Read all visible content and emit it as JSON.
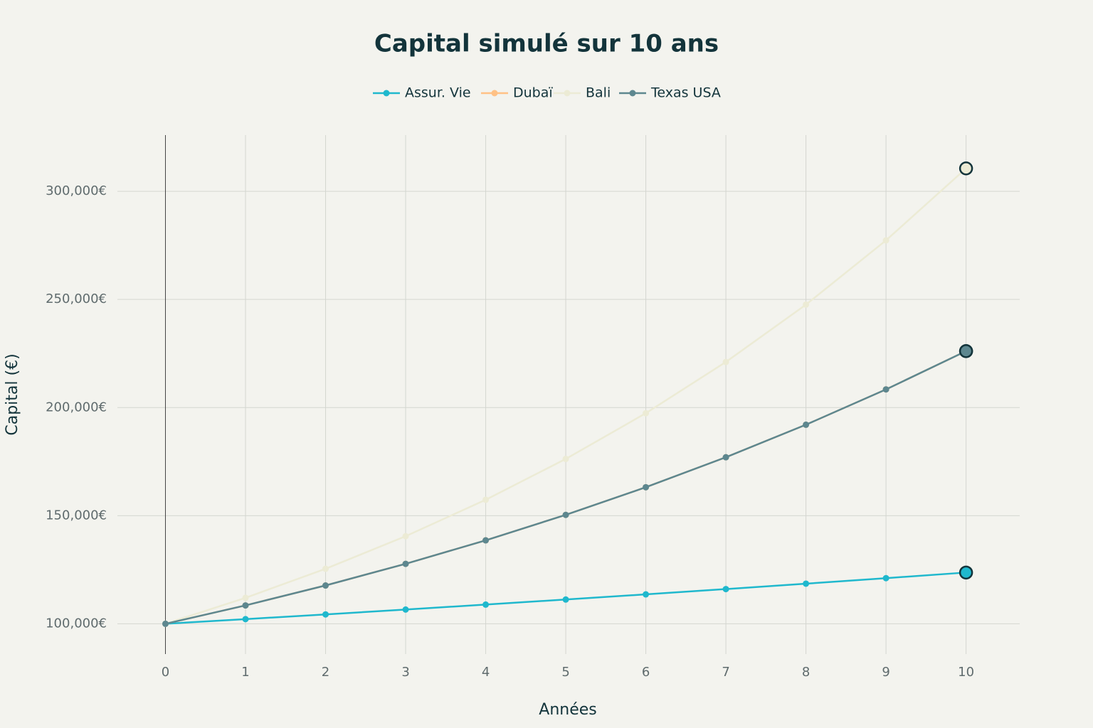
{
  "chart_data": {
    "type": "line",
    "title": "Capital simulé sur 10 ans",
    "x_label": "Années",
    "y_label": "Capital (€)",
    "x": [
      0,
      1,
      2,
      3,
      4,
      5,
      6,
      7,
      8,
      9,
      10
    ],
    "series": [
      {
        "name": "Assur. Vie",
        "color": "#1fb8cd",
        "values": [
          100000,
          102150,
          104346,
          106590,
          108882,
          111223,
          113614,
          116057,
          118552,
          121101,
          123705
        ]
      },
      {
        "name": "Dubaï",
        "color": "#ffc185",
        "values": [
          100000,
          108500,
          117723,
          127729,
          138586,
          150366,
          163147,
          177014,
          192060,
          208386,
          226098
        ]
      },
      {
        "name": "Bali",
        "color": "#eceBD5",
        "values": [
          100000,
          112000,
          125440,
          140493,
          157352,
          176234,
          197382,
          221068,
          247596,
          277308,
          310585
        ]
      },
      {
        "name": "Texas USA",
        "color": "#5d878f",
        "values": [
          100000,
          108500,
          117723,
          127729,
          138586,
          150366,
          163147,
          177014,
          192060,
          208386,
          226098
        ]
      }
    ],
    "xlim": [
      -0.6,
      10.67
    ],
    "xticks": [
      0,
      1,
      2,
      3,
      4,
      5,
      6,
      7,
      8,
      9,
      10
    ],
    "ylim": [
      86000,
      326000
    ],
    "yticks": [
      {
        "value": 100000,
        "label": "100,000€"
      },
      {
        "value": 150000,
        "label": "150,000€"
      },
      {
        "value": 200000,
        "label": "200,000€"
      },
      {
        "value": 250000,
        "label": "250,000€"
      },
      {
        "value": 300000,
        "label": "300,000€"
      }
    ],
    "grid": true,
    "legend": "top"
  }
}
